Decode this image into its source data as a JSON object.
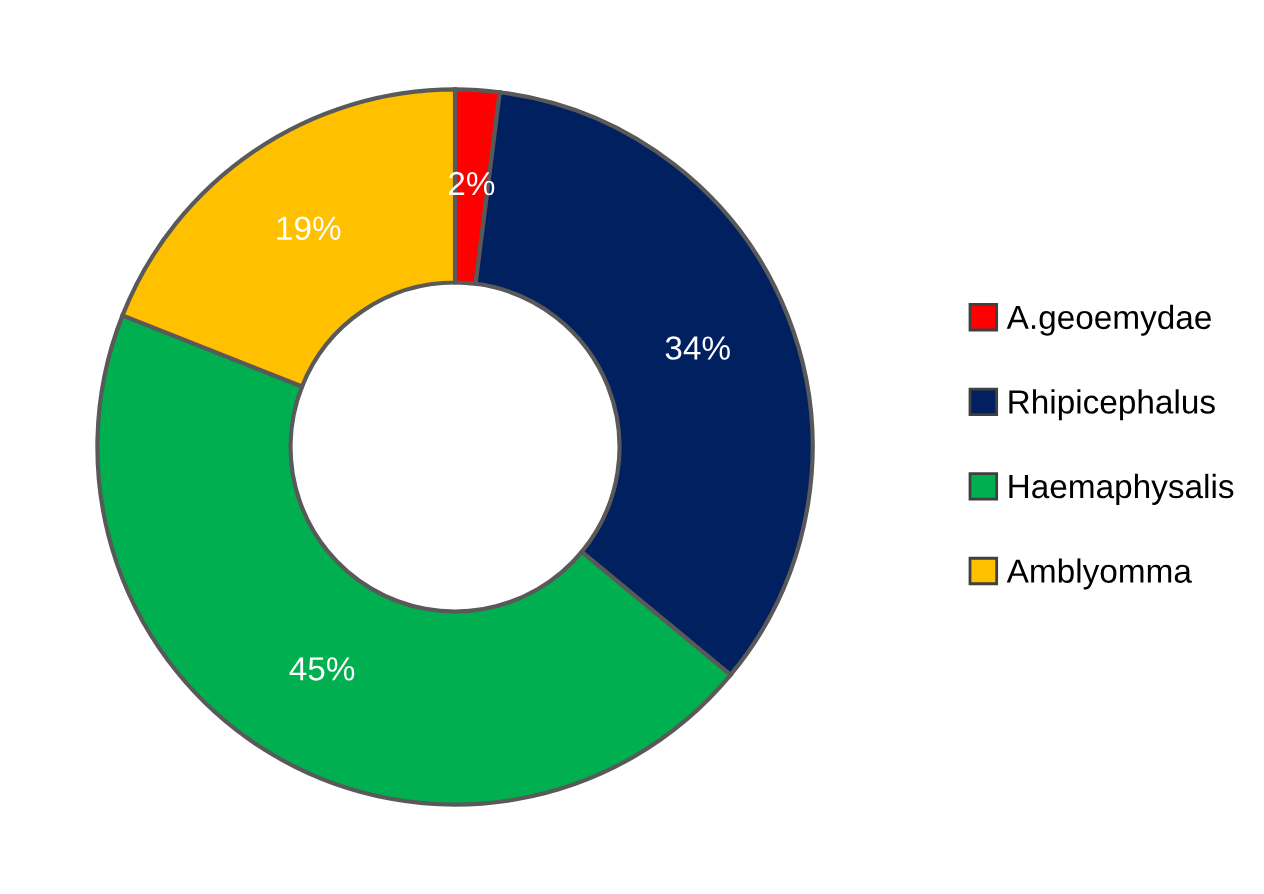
{
  "chart_data": {
    "type": "donut",
    "categories": [
      "A.geoemydae",
      "Rhipicephalus",
      "Haemaphysalis",
      "Amblyomma"
    ],
    "values": [
      2,
      34,
      45,
      19
    ],
    "colors": [
      "#ff0000",
      "#002060",
      "#00b050",
      "#ffc000"
    ],
    "value_labels": [
      "2%",
      "34%",
      "45%",
      "19%"
    ],
    "legend": "right"
  }
}
